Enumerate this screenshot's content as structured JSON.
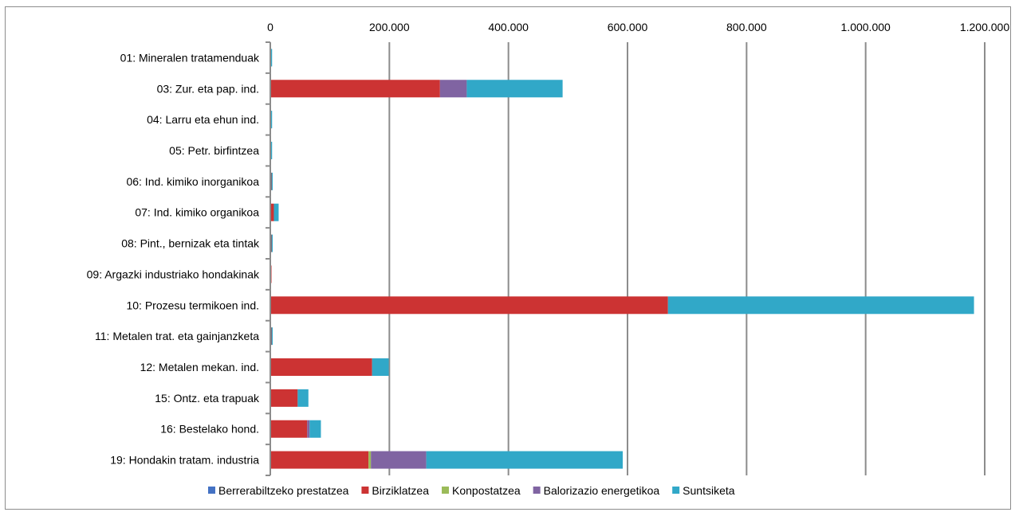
{
  "chart_data": {
    "type": "bar",
    "orientation": "horizontal",
    "stacked": true,
    "title": "",
    "xlabel": "",
    "ylabel": "",
    "xlim": [
      0,
      1200000
    ],
    "x_ticks": [
      0,
      200000,
      400000,
      600000,
      800000,
      1000000,
      1200000
    ],
    "x_tick_labels": [
      "0",
      "200.000",
      "400.000",
      "600.000",
      "800.000",
      "1.000.000",
      "1.200.000"
    ],
    "x_axis_position": "top",
    "grid": true,
    "legend_position": "bottom",
    "categories": [
      "01: Mineralen tratamenduak",
      "03: Zur. eta pap. ind.",
      "04: Larru eta ehun ind.",
      "05: Petr. birfintzea",
      "06: Ind. kimiko inorganikoa",
      "07: Ind. kimiko organikoa",
      "08: Pint., bernizak eta tintak",
      "09: Argazki industriako hondakinak",
      "10: Prozesu termikoen ind.",
      "11: Metalen trat. eta gainjanzketa",
      "12: Metalen mekan. ind.",
      "15: Ontz. eta trapuak",
      "16: Bestelako hond.",
      "19: Hondakin tratam. industria"
    ],
    "series": [
      {
        "name": "Berrerabiltzeko prestatzea",
        "color": "#4472c4",
        "values": [
          0,
          0,
          0,
          0,
          0,
          0,
          0,
          0,
          0,
          0,
          0,
          0,
          0,
          0
        ]
      },
      {
        "name": "Birziklatzea",
        "color": "#cc3333",
        "values": [
          1000,
          285000,
          1000,
          1000,
          2000,
          6000,
          2000,
          2000,
          668000,
          2000,
          171000,
          46000,
          62000,
          165000
        ]
      },
      {
        "name": "Konpostatzea",
        "color": "#9bbb59",
        "values": [
          0,
          0,
          0,
          0,
          0,
          0,
          0,
          0,
          0,
          0,
          0,
          0,
          0,
          4000
        ]
      },
      {
        "name": "Balorizazio energetikoa",
        "color": "#8064a2",
        "values": [
          0,
          45000,
          0,
          0,
          0,
          0,
          0,
          0,
          0,
          0,
          0,
          0,
          4000,
          93000
        ]
      },
      {
        "name": "Suntsiketa",
        "color": "#31a8c8",
        "values": [
          1000,
          161000,
          1000,
          1000,
          1000,
          8000,
          1000,
          0,
          514000,
          2000,
          28000,
          18000,
          19000,
          330000
        ]
      }
    ]
  }
}
